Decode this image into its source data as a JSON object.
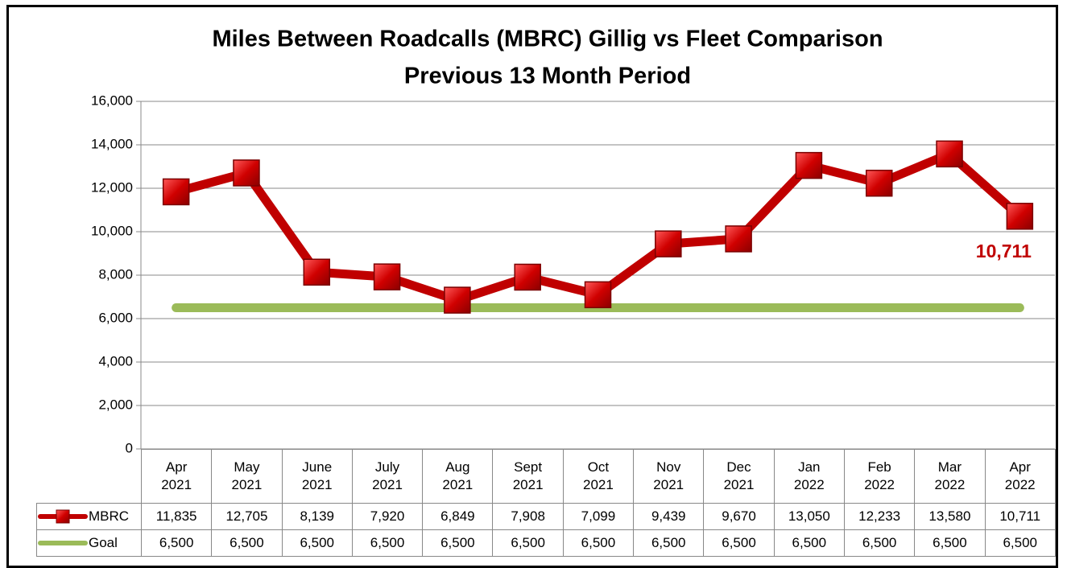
{
  "chart_data": {
    "type": "line",
    "title": "Miles Between Roadcalls (MBRC) Gillig vs Fleet Comparison",
    "subtitle": "Previous 13 Month Period",
    "categories": [
      "Apr 2021",
      "May 2021",
      "June 2021",
      "July 2021",
      "Aug 2021",
      "Sept 2021",
      "Oct 2021",
      "Nov 2021",
      "Dec 2021",
      "Jan 2022",
      "Feb 2022",
      "Mar 2022",
      "Apr 2022"
    ],
    "series": [
      {
        "name": "MBRC",
        "color": "#c00000",
        "values": [
          11835,
          12705,
          8139,
          7920,
          6849,
          7908,
          7099,
          9439,
          9670,
          13050,
          12233,
          13580,
          10711
        ],
        "value_labels": [
          "11,835",
          "12,705",
          "8,139",
          "7,920",
          "6,849",
          "7,908",
          "7,099",
          "9,439",
          "9,670",
          "13,050",
          "12,233",
          "13,580",
          "10,711"
        ]
      },
      {
        "name": "Goal",
        "color": "#9bbb59",
        "values": [
          6500,
          6500,
          6500,
          6500,
          6500,
          6500,
          6500,
          6500,
          6500,
          6500,
          6500,
          6500,
          6500
        ],
        "value_labels": [
          "6,500",
          "6,500",
          "6,500",
          "6,500",
          "6,500",
          "6,500",
          "6,500",
          "6,500",
          "6,500",
          "6,500",
          "6,500",
          "6,500",
          "6,500"
        ]
      }
    ],
    "ylim": [
      0,
      16000
    ],
    "yticks": [
      0,
      {
        "value": 2000,
        "label": "2,000"
      },
      {
        "value": 4000,
        "label": "4,000"
      },
      {
        "value": 6000,
        "label": "6,000"
      },
      {
        "value": 8000,
        "label": "8,000"
      },
      {
        "value": 10000,
        "label": "10,000"
      },
      {
        "value": 12000,
        "label": "12,000"
      },
      {
        "value": 14000,
        "label": "14,000"
      },
      {
        "value": 16000,
        "label": "16,000"
      }
    ],
    "grid": true
  }
}
